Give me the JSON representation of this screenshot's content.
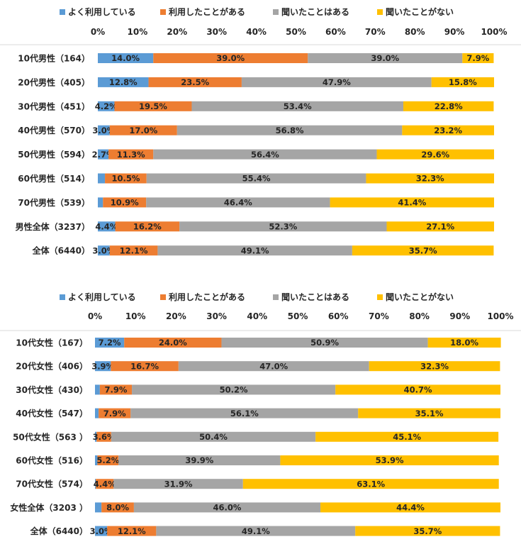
{
  "colors": {
    "frequent": "#5B9BD5",
    "used": "#ED7D31",
    "heard": "#A5A5A5",
    "never": "#FFC000"
  },
  "chart_data": [
    {
      "type": "bar",
      "orientation": "horizontal",
      "stacked": true,
      "xlim": [
        0,
        100
      ],
      "ticks": [
        "0%",
        "10%",
        "20%",
        "30%",
        "40%",
        "50%",
        "60%",
        "70%",
        "80%",
        "90%",
        "100%"
      ],
      "legend_position": "top",
      "categories": [
        "10代男性（164）",
        "20代男性（405）",
        "30代男性（451）",
        "40代男性（570）",
        "50代男性（594）",
        "60代男性（514）",
        "70代男性（539）",
        "男性全体（3237）",
        "全体（6440）"
      ],
      "series": [
        {
          "name": "よく利用している",
          "color": "#5B9BD5",
          "values": [
            14.0,
            12.8,
            4.2,
            3.0,
            2.7,
            1.8,
            1.3,
            4.4,
            3.0
          ],
          "labels": [
            "14.0%",
            "12.8%",
            "4.2%",
            "3.0%",
            "2.7%",
            "",
            "",
            "4.4%",
            "3.0%"
          ]
        },
        {
          "name": "利用したことがある",
          "color": "#ED7D31",
          "values": [
            39.0,
            23.5,
            19.5,
            17.0,
            11.3,
            10.5,
            10.9,
            16.2,
            12.1
          ],
          "labels": [
            "39.0%",
            "23.5%",
            "19.5%",
            "17.0%",
            "11.3%",
            "10.5%",
            "10.9%",
            "16.2%",
            "12.1%"
          ]
        },
        {
          "name": "聞いたことはある",
          "color": "#A5A5A5",
          "values": [
            39.0,
            47.9,
            53.4,
            56.8,
            56.4,
            55.4,
            46.4,
            52.3,
            49.1
          ],
          "labels": [
            "39.0%",
            "47.9%",
            "53.4%",
            "56.8%",
            "56.4%",
            "55.4%",
            "46.4%",
            "52.3%",
            "49.1%"
          ]
        },
        {
          "name": "聞いたことがない",
          "color": "#FFC000",
          "values": [
            7.9,
            15.8,
            22.8,
            23.2,
            29.6,
            32.3,
            41.4,
            27.1,
            35.7
          ],
          "labels": [
            "7.9%",
            "15.8%",
            "22.8%",
            "23.2%",
            "29.6%",
            "32.3%",
            "41.4%",
            "27.1%",
            "35.7%"
          ]
        }
      ]
    },
    {
      "type": "bar",
      "orientation": "horizontal",
      "stacked": true,
      "xlim": [
        0,
        100
      ],
      "ticks": [
        "0%",
        "10%",
        "20%",
        "30%",
        "40%",
        "50%",
        "60%",
        "70%",
        "80%",
        "90%",
        "100%"
      ],
      "legend_position": "top",
      "categories": [
        "10代女性（167）",
        "20代女性（406）",
        "30代女性（430）",
        "40代女性（547）",
        "50代女性（563 ）",
        "60代女性（516）",
        "70代女性（574）",
        "女性全体（3203 ）",
        "全体（6440）"
      ],
      "series": [
        {
          "name": "よく利用している",
          "color": "#5B9BD5",
          "values": [
            7.2,
            3.9,
            1.2,
            0.9,
            0.4,
            0.6,
            0.2,
            1.6,
            3.0
          ],
          "labels": [
            "7.2%",
            "3.9%",
            "",
            "",
            "",
            "",
            "",
            "",
            "3.0%"
          ]
        },
        {
          "name": "利用したことがある",
          "color": "#ED7D31",
          "values": [
            24.0,
            16.7,
            7.9,
            7.9,
            3.6,
            5.2,
            4.4,
            8.0,
            12.1
          ],
          "labels": [
            "24.0%",
            "16.7%",
            "7.9%",
            "7.9%",
            "3.6%",
            "5.2%",
            "4.4%",
            "8.0%",
            "12.1%"
          ]
        },
        {
          "name": "聞いたことはある",
          "color": "#A5A5A5",
          "values": [
            50.9,
            47.0,
            50.2,
            56.1,
            50.4,
            39.9,
            31.9,
            46.0,
            49.1
          ],
          "labels": [
            "50.9%",
            "47.0%",
            "50.2%",
            "56.1%",
            "50.4%",
            "39.9%",
            "31.9%",
            "46.0%",
            "49.1%"
          ]
        },
        {
          "name": "聞いたことがない",
          "color": "#FFC000",
          "values": [
            18.0,
            32.3,
            40.7,
            35.1,
            45.1,
            53.9,
            63.1,
            44.4,
            35.7
          ],
          "labels": [
            "18.0%",
            "32.3%",
            "40.7%",
            "35.1%",
            "45.1%",
            "53.9%",
            "63.1%",
            "44.4%",
            "35.7%"
          ]
        }
      ]
    }
  ]
}
